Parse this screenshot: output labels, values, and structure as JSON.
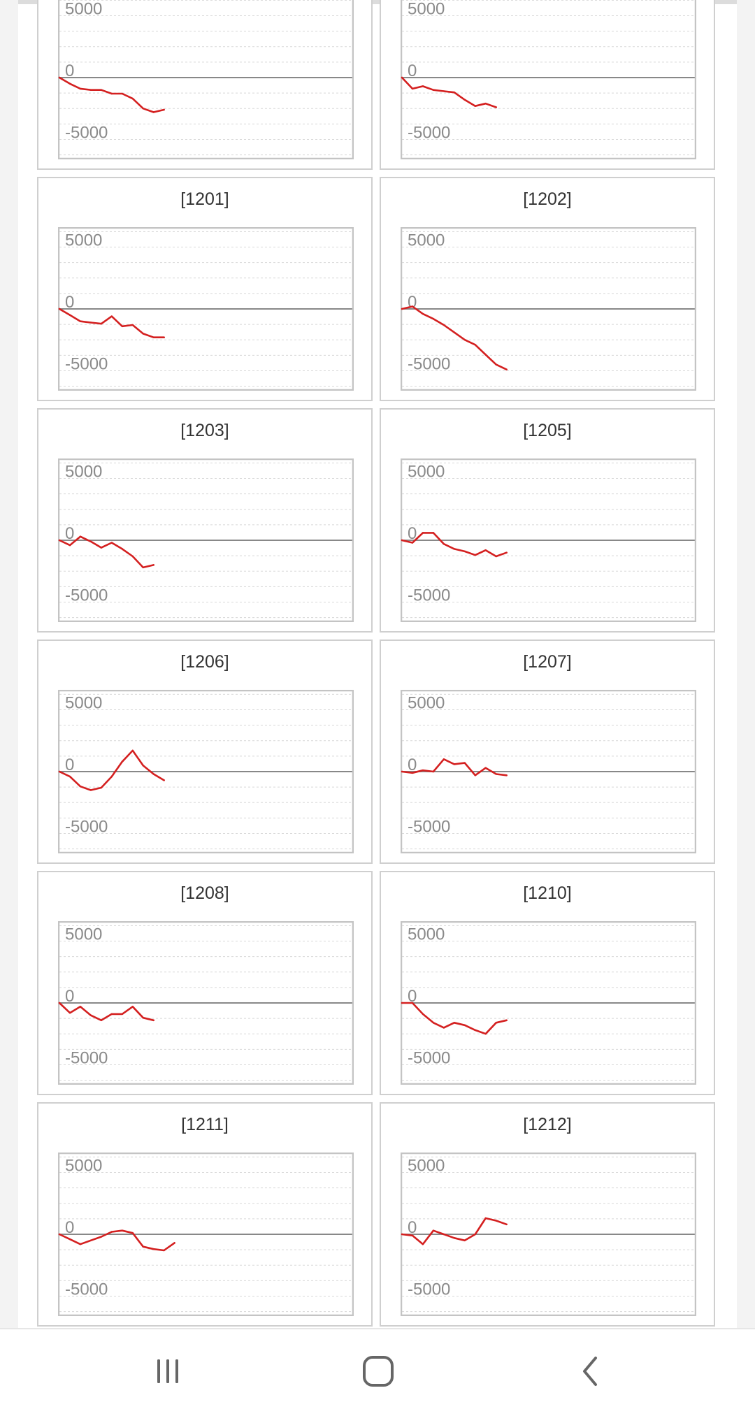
{
  "colors": {
    "line": "#d42020",
    "zero_line": "#888888",
    "grid": "#d8d8d8",
    "frame": "#c4c4c4",
    "tick_label": "#8a8a8a",
    "nav_icon": "#666666"
  },
  "navbar": {
    "recent_icon": "recent-apps-icon",
    "home_icon": "home-icon",
    "back_icon": "back-icon"
  },
  "chart_data": [
    {
      "type": "line",
      "title": "",
      "xlim": [
        0,
        28
      ],
      "ylim": [
        -6500,
        6500
      ],
      "yticks": [
        5000,
        0,
        -5000
      ],
      "grid": true,
      "y": [
        0,
        -500,
        -900,
        -1000,
        -1000,
        -1300,
        -1300,
        -1700,
        -2500,
        -2800,
        -2600
      ]
    },
    {
      "type": "line",
      "title": "",
      "xlim": [
        0,
        28
      ],
      "ylim": [
        -6500,
        6500
      ],
      "yticks": [
        5000,
        0,
        -5000
      ],
      "grid": true,
      "y": [
        0,
        -900,
        -700,
        -1000,
        -1100,
        -1200,
        -1800,
        -2300,
        -2100,
        -2400
      ]
    },
    {
      "type": "line",
      "title": "[1201]",
      "xlim": [
        0,
        28
      ],
      "ylim": [
        -6500,
        6500
      ],
      "yticks": [
        5000,
        0,
        -5000
      ],
      "grid": true,
      "y": [
        0,
        -500,
        -1000,
        -1100,
        -1200,
        -600,
        -1400,
        -1300,
        -2000,
        -2300,
        -2300
      ]
    },
    {
      "type": "line",
      "title": "[1202]",
      "xlim": [
        0,
        28
      ],
      "ylim": [
        -6500,
        6500
      ],
      "yticks": [
        5000,
        0,
        -5000
      ],
      "grid": true,
      "y": [
        0,
        200,
        -400,
        -800,
        -1300,
        -1900,
        -2500,
        -2900,
        -3700,
        -4500,
        -4900
      ]
    },
    {
      "type": "line",
      "title": "[1203]",
      "xlim": [
        0,
        28
      ],
      "ylim": [
        -6500,
        6500
      ],
      "yticks": [
        5000,
        0,
        -5000
      ],
      "grid": true,
      "y": [
        0,
        -400,
        300,
        -100,
        -600,
        -200,
        -700,
        -1300,
        -2200,
        -2000
      ]
    },
    {
      "type": "line",
      "title": "[1205]",
      "xlim": [
        0,
        28
      ],
      "ylim": [
        -6500,
        6500
      ],
      "yticks": [
        5000,
        0,
        -5000
      ],
      "grid": true,
      "y": [
        0,
        -200,
        600,
        600,
        -300,
        -700,
        -900,
        -1200,
        -800,
        -1300,
        -1000
      ]
    },
    {
      "type": "line",
      "title": "[1206]",
      "xlim": [
        0,
        28
      ],
      "ylim": [
        -6500,
        6500
      ],
      "yticks": [
        5000,
        0,
        -5000
      ],
      "grid": true,
      "y": [
        0,
        -400,
        -1200,
        -1500,
        -1300,
        -400,
        800,
        1700,
        500,
        -200,
        -700
      ]
    },
    {
      "type": "line",
      "title": "[1207]",
      "xlim": [
        0,
        28
      ],
      "ylim": [
        -6500,
        6500
      ],
      "yticks": [
        5000,
        0,
        -5000
      ],
      "grid": true,
      "y": [
        0,
        -100,
        100,
        0,
        1000,
        600,
        700,
        -300,
        300,
        -200,
        -300
      ]
    },
    {
      "type": "line",
      "title": "[1208]",
      "xlim": [
        0,
        28
      ],
      "ylim": [
        -6500,
        6500
      ],
      "yticks": [
        5000,
        0,
        -5000
      ],
      "grid": true,
      "y": [
        0,
        -800,
        -300,
        -1000,
        -1400,
        -900,
        -900,
        -300,
        -1200,
        -1400
      ]
    },
    {
      "type": "line",
      "title": "[1210]",
      "xlim": [
        0,
        28
      ],
      "ylim": [
        -6500,
        6500
      ],
      "yticks": [
        5000,
        0,
        -5000
      ],
      "grid": true,
      "y": [
        0,
        0,
        -900,
        -1600,
        -2000,
        -1600,
        -1800,
        -2200,
        -2500,
        -1600,
        -1400
      ]
    },
    {
      "type": "line",
      "title": "[1211]",
      "xlim": [
        0,
        28
      ],
      "ylim": [
        -6500,
        6500
      ],
      "yticks": [
        5000,
        0,
        -5000
      ],
      "grid": true,
      "y": [
        0,
        -400,
        -800,
        -500,
        -200,
        200,
        300,
        100,
        -1000,
        -1200,
        -1300,
        -700
      ]
    },
    {
      "type": "line",
      "title": "[1212]",
      "xlim": [
        0,
        28
      ],
      "ylim": [
        -6500,
        6500
      ],
      "yticks": [
        5000,
        0,
        -5000
      ],
      "grid": true,
      "y": [
        0,
        -100,
        -800,
        300,
        0,
        -300,
        -500,
        0,
        1300,
        1100,
        800
      ]
    }
  ]
}
